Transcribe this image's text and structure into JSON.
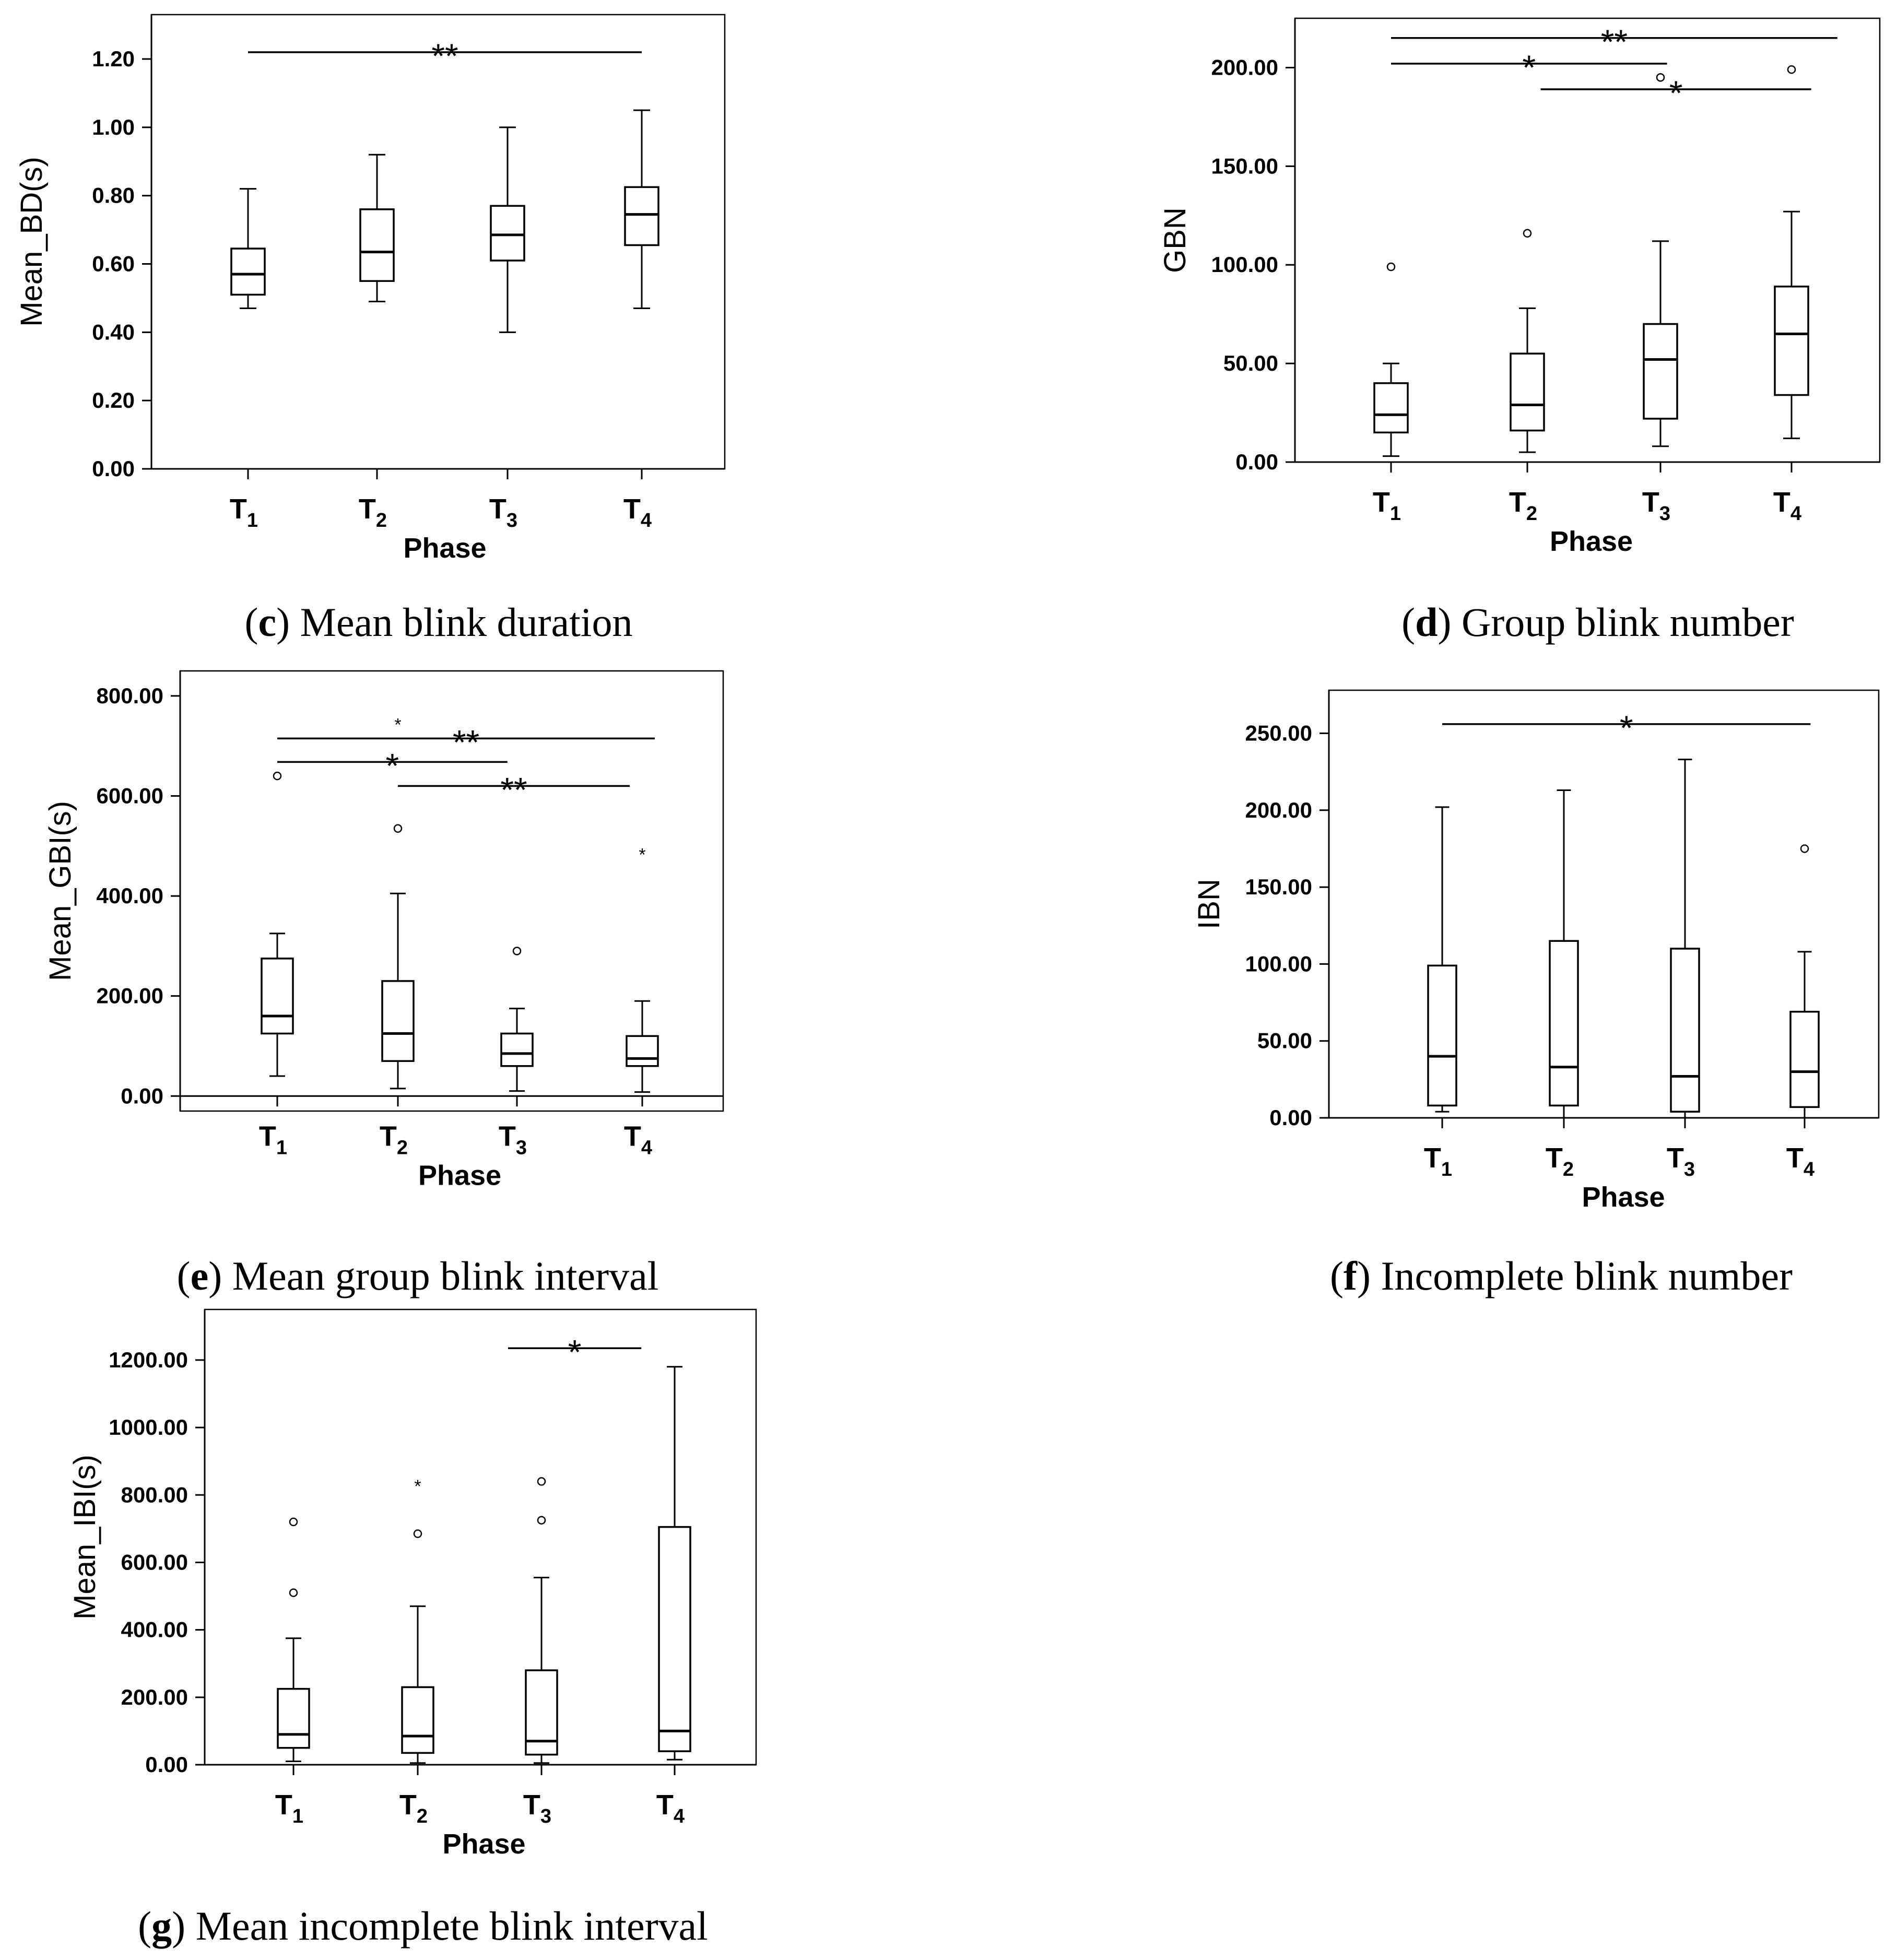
{
  "chart_data": [
    {
      "id": "c",
      "type": "box",
      "caption_letter": "c",
      "caption_text": " Mean blink duration",
      "xlabel": "Phase",
      "ylabel": "Mean_BD(s)",
      "ylim": [
        0,
        1.33
      ],
      "yticks": [
        "0.00",
        "0.20",
        "0.40",
        "0.60",
        "0.80",
        "1.00",
        "1.20"
      ],
      "ytick_values": [
        0,
        0.2,
        0.4,
        0.6,
        0.8,
        1.0,
        1.2
      ],
      "categories": [
        {
          "base": "T",
          "sub": "1"
        },
        {
          "base": "T",
          "sub": "2"
        },
        {
          "base": "T",
          "sub": "3"
        },
        {
          "base": "T",
          "sub": "4"
        }
      ],
      "boxes": [
        {
          "whisker_low": 0.47,
          "q1": 0.51,
          "median": 0.57,
          "q3": 0.645,
          "whisker_high": 0.82
        },
        {
          "whisker_low": 0.49,
          "q1": 0.55,
          "median": 0.635,
          "q3": 0.76,
          "whisker_high": 0.92
        },
        {
          "whisker_low": 0.4,
          "q1": 0.61,
          "median": 0.685,
          "q3": 0.77,
          "whisker_high": 1.0
        },
        {
          "whisker_low": 0.47,
          "q1": 0.655,
          "median": 0.745,
          "q3": 0.825,
          "whisker_high": 1.05
        }
      ],
      "outliers": [],
      "significance": [
        {
          "from": 0,
          "to": 3,
          "y": 1.22,
          "label": "**"
        }
      ]
    },
    {
      "id": "d",
      "type": "box",
      "caption_letter": "d",
      "caption_text": " Group blink number",
      "xlabel": "Phase",
      "ylabel": "GBN",
      "ylim": [
        0,
        225
      ],
      "yticks": [
        "0.00",
        "50.00",
        "100.00",
        "150.00",
        "200.00"
      ],
      "ytick_values": [
        0,
        50,
        100,
        150,
        200
      ],
      "categories": [
        {
          "base": "T",
          "sub": "1"
        },
        {
          "base": "T",
          "sub": "2"
        },
        {
          "base": "T",
          "sub": "3"
        },
        {
          "base": "T",
          "sub": "4"
        }
      ],
      "boxes": [
        {
          "whisker_low": 3,
          "q1": 15,
          "median": 24,
          "q3": 40,
          "whisker_high": 50
        },
        {
          "whisker_low": 5,
          "q1": 16,
          "median": 29,
          "q3": 55,
          "whisker_high": 78
        },
        {
          "whisker_low": 8,
          "q1": 22,
          "median": 52,
          "q3": 70,
          "whisker_high": 112
        },
        {
          "whisker_low": 12,
          "q1": 34,
          "median": 65,
          "q3": 89,
          "whisker_high": 127
        }
      ],
      "outliers": [
        {
          "cat": 0,
          "value": 99,
          "symbol": "circle"
        },
        {
          "cat": 1,
          "value": 116,
          "symbol": "circle"
        },
        {
          "cat": 2,
          "value": 195,
          "symbol": "circle"
        },
        {
          "cat": 3,
          "value": 199,
          "symbol": "circle"
        }
      ],
      "significance": [
        {
          "from": 0,
          "to": 3.35,
          "y": 215,
          "label": "**"
        },
        {
          "from": 0,
          "to": 2.05,
          "y": 202,
          "label": "*"
        },
        {
          "from": 1.1,
          "to": 3.15,
          "y": 189,
          "label": "*"
        }
      ]
    },
    {
      "id": "e",
      "type": "box",
      "caption_letter": "e",
      "caption_text": " Mean group blink interval",
      "xlabel": "Phase",
      "ylabel": "Mean_GBI(s)",
      "ylim": [
        -30,
        850
      ],
      "yticks": [
        "0.00",
        "200.00",
        "400.00",
        "600.00",
        "800.00"
      ],
      "ytick_values": [
        0,
        200,
        400,
        600,
        800
      ],
      "categories": [
        {
          "base": "T",
          "sub": "1"
        },
        {
          "base": "T",
          "sub": "2"
        },
        {
          "base": "T",
          "sub": "3"
        },
        {
          "base": "T",
          "sub": "4"
        }
      ],
      "boxes": [
        {
          "whisker_low": 40,
          "q1": 125,
          "median": 160,
          "q3": 275,
          "whisker_high": 325
        },
        {
          "whisker_low": 15,
          "q1": 70,
          "median": 125,
          "q3": 230,
          "whisker_high": 405
        },
        {
          "whisker_low": 10,
          "q1": 60,
          "median": 85,
          "q3": 125,
          "whisker_high": 175
        },
        {
          "whisker_low": 8,
          "q1": 60,
          "median": 75,
          "q3": 120,
          "whisker_high": 190
        }
      ],
      "outliers": [
        {
          "cat": 0,
          "value": 640,
          "symbol": "circle"
        },
        {
          "cat": 1,
          "value": 745,
          "symbol": "star"
        },
        {
          "cat": 1,
          "value": 535,
          "symbol": "circle"
        },
        {
          "cat": 2,
          "value": 290,
          "symbol": "circle"
        },
        {
          "cat": 3,
          "value": 485,
          "symbol": "star"
        }
      ],
      "significance": [
        {
          "from": 0,
          "to": 3.1,
          "y": 715,
          "label": "**"
        },
        {
          "from": 0,
          "to": 1.92,
          "y": 668,
          "label": "*"
        },
        {
          "from": 1,
          "to": 2.9,
          "y": 620,
          "label": "**"
        }
      ]
    },
    {
      "id": "f",
      "type": "box",
      "caption_letter": "f",
      "caption_text": " Incomplete blink number",
      "xlabel": "Phase",
      "ylabel": "IBN",
      "ylim": [
        0,
        278
      ],
      "yticks": [
        "0.00",
        "50.00",
        "100.00",
        "150.00",
        "200.00",
        "250.00"
      ],
      "ytick_values": [
        0,
        50,
        100,
        150,
        200,
        250
      ],
      "categories": [
        {
          "base": "T",
          "sub": "1"
        },
        {
          "base": "T",
          "sub": "2"
        },
        {
          "base": "T",
          "sub": "3"
        },
        {
          "base": "T",
          "sub": "4"
        }
      ],
      "boxes": [
        {
          "whisker_low": 4,
          "q1": 8,
          "median": 40,
          "q3": 99,
          "whisker_high": 202
        },
        {
          "whisker_low": 0,
          "q1": 8,
          "median": 33,
          "q3": 115,
          "whisker_high": 213
        },
        {
          "whisker_low": 0,
          "q1": 4,
          "median": 27,
          "q3": 110,
          "whisker_high": 233
        },
        {
          "whisker_low": 0,
          "q1": 7,
          "median": 30,
          "q3": 69,
          "whisker_high": 108
        }
      ],
      "outliers": [
        {
          "cat": 3,
          "value": 175,
          "symbol": "circle"
        }
      ],
      "significance": [
        {
          "from": 0,
          "to": 3.05,
          "y": 256,
          "label": "*"
        }
      ]
    },
    {
      "id": "g",
      "type": "box",
      "caption_letter": "g",
      "caption_text": " Mean incomplete blink interval",
      "xlabel": "Phase",
      "ylabel": "Mean_IBI(s)",
      "ylim": [
        0,
        1350
      ],
      "yticks": [
        "0.00",
        "200.00",
        "400.00",
        "600.00",
        "800.00",
        "1000.00",
        "1200.00"
      ],
      "ytick_values": [
        0,
        200,
        400,
        600,
        800,
        1000,
        1200
      ],
      "categories": [
        {
          "base": "T",
          "sub": "1"
        },
        {
          "base": "T",
          "sub": "2"
        },
        {
          "base": "T",
          "sub": "3"
        },
        {
          "base": "T",
          "sub": "4"
        }
      ],
      "boxes": [
        {
          "whisker_low": 10,
          "q1": 50,
          "median": 90,
          "q3": 225,
          "whisker_high": 375
        },
        {
          "whisker_low": 5,
          "q1": 35,
          "median": 85,
          "q3": 230,
          "whisker_high": 470
        },
        {
          "whisker_low": 5,
          "q1": 30,
          "median": 70,
          "q3": 280,
          "whisker_high": 555
        },
        {
          "whisker_low": 15,
          "q1": 40,
          "median": 100,
          "q3": 705,
          "whisker_high": 1180
        }
      ],
      "outliers": [
        {
          "cat": 0,
          "value": 720,
          "symbol": "circle"
        },
        {
          "cat": 0,
          "value": 510,
          "symbol": "circle"
        },
        {
          "cat": 1,
          "value": 830,
          "symbol": "star"
        },
        {
          "cat": 1,
          "value": 685,
          "symbol": "circle"
        },
        {
          "cat": 2,
          "value": 840,
          "symbol": "circle"
        },
        {
          "cat": 2,
          "value": 725,
          "symbol": "circle"
        }
      ],
      "significance": [
        {
          "from": 1.73,
          "to": 2.75,
          "y": 1235,
          "label": "*"
        }
      ]
    }
  ]
}
